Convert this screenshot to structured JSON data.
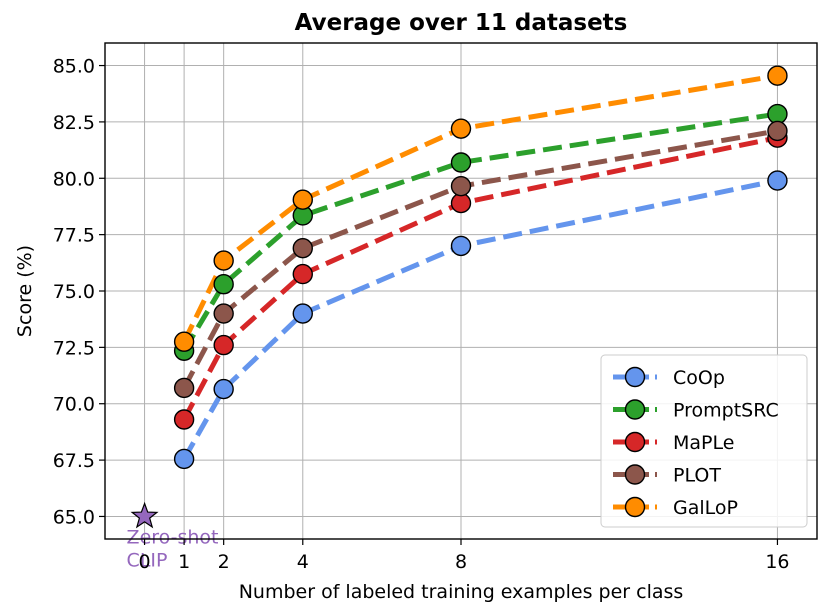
{
  "chart_data": {
    "type": "line",
    "title": "Average over 11 datasets",
    "xlabel": "Number of labeled training examples per class",
    "ylabel": "Score (%)",
    "xlim": [
      -1,
      17
    ],
    "ylim": [
      64,
      86
    ],
    "xticks": [
      0,
      1,
      2,
      4,
      8,
      16
    ],
    "xtick_labels": [
      "0",
      "1",
      "2",
      "4",
      "8",
      "16"
    ],
    "yticks": [
      65.0,
      67.5,
      70.0,
      72.5,
      75.0,
      77.5,
      80.0,
      82.5,
      85.0
    ],
    "ytick_labels": [
      "65.0",
      "67.5",
      "70.0",
      "72.5",
      "75.0",
      "77.5",
      "80.0",
      "82.5",
      "85.0"
    ],
    "grid": true,
    "legend_position": "lower-right",
    "x": [
      1,
      2,
      4,
      8,
      16
    ],
    "series": [
      {
        "name": "CoOp",
        "color": "#6495ED",
        "values": [
          67.55,
          70.65,
          74.0,
          77.0,
          79.9
        ]
      },
      {
        "name": "PromptSRC",
        "color": "#2CA02C",
        "values": [
          72.35,
          75.3,
          78.35,
          80.7,
          82.85
        ]
      },
      {
        "name": "MaPLe",
        "color": "#D62728",
        "values": [
          69.3,
          72.6,
          75.75,
          78.9,
          81.8
        ]
      },
      {
        "name": "PLOT",
        "color": "#8C564B",
        "values": [
          70.7,
          74.0,
          76.9,
          79.65,
          82.1
        ]
      },
      {
        "name": "GalLoP",
        "color": "#FF8C00",
        "values": [
          72.75,
          76.35,
          79.05,
          82.2,
          84.55
        ]
      }
    ],
    "zero_shot": {
      "x": 0,
      "y": 65.0,
      "color": "#9467BD",
      "label_line1": "Zero-shot",
      "label_line2": "CLIP"
    }
  }
}
